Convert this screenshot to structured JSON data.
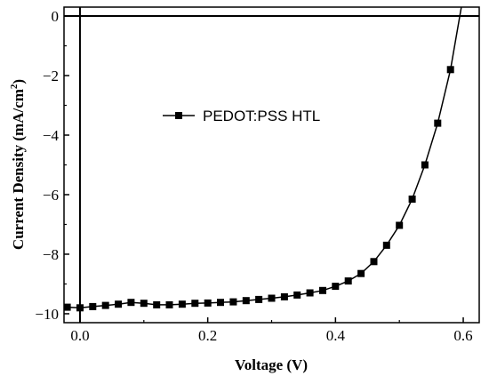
{
  "chart_data": {
    "type": "line",
    "xlabel": "Voltage (V)",
    "ylabel": "Current Density (mA/cm",
    "ylabel_superscript": "2",
    "ylabel_suffix": ")",
    "xlim": [
      -0.025,
      0.625
    ],
    "ylim": [
      -10.3,
      0.3
    ],
    "x_ticks": [
      0.0,
      0.2,
      0.4,
      0.6
    ],
    "x_tick_labels": [
      "0.0",
      "0.2",
      "0.4",
      "0.6"
    ],
    "y_ticks": [
      0,
      -2,
      -4,
      -6,
      -8,
      -10
    ],
    "y_tick_labels": [
      "0",
      "−2",
      "−4",
      "−6",
      "−8",
      "−10"
    ],
    "reference_lines": {
      "x": 0,
      "y": 0
    },
    "grid": false,
    "legend_position": "upper-center-left",
    "series": [
      {
        "name": "PEDOT:PSS HTL",
        "color": "#000000",
        "marker": "square",
        "x": [
          -0.02,
          0.0,
          0.02,
          0.04,
          0.06,
          0.08,
          0.1,
          0.12,
          0.14,
          0.16,
          0.18,
          0.2,
          0.22,
          0.24,
          0.26,
          0.28,
          0.3,
          0.32,
          0.34,
          0.36,
          0.38,
          0.4,
          0.42,
          0.44,
          0.46,
          0.48,
          0.5,
          0.52,
          0.54,
          0.56,
          0.58
        ],
        "y": [
          -9.78,
          -9.8,
          -9.76,
          -9.72,
          -9.68,
          -9.62,
          -9.65,
          -9.7,
          -9.7,
          -9.68,
          -9.65,
          -9.64,
          -9.62,
          -9.6,
          -9.56,
          -9.52,
          -9.48,
          -9.43,
          -9.37,
          -9.3,
          -9.22,
          -9.08,
          -8.9,
          -8.65,
          -8.25,
          -7.7,
          -7.03,
          -6.15,
          -5.0,
          -3.6,
          -1.8
        ]
      }
    ],
    "curve_end": {
      "x": 0.597,
      "y": 0.3
    }
  }
}
